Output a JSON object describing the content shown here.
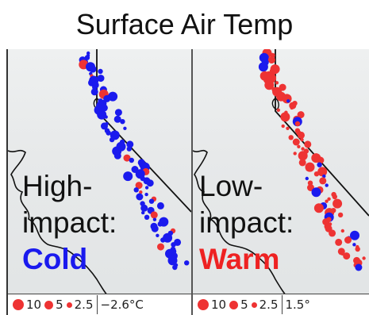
{
  "title": "Surface Air Temp",
  "panels": [
    {
      "line1": "High-",
      "line2": "impact:",
      "line3": "Cold",
      "accent": "#1a1aee",
      "legend": {
        "sizes": [
          "10",
          "5",
          "2.5"
        ],
        "value": "−2.6°C"
      }
    },
    {
      "line1": "Low-",
      "line2": "impact:",
      "line3": "Warm",
      "accent": "#ee2222",
      "legend": {
        "sizes": [
          "10",
          "5",
          "2.5"
        ],
        "value": "1.5°"
      }
    }
  ],
  "colors": {
    "cold": "#1a1aee",
    "warm": "#ee3333",
    "boundary": "#111111"
  }
}
